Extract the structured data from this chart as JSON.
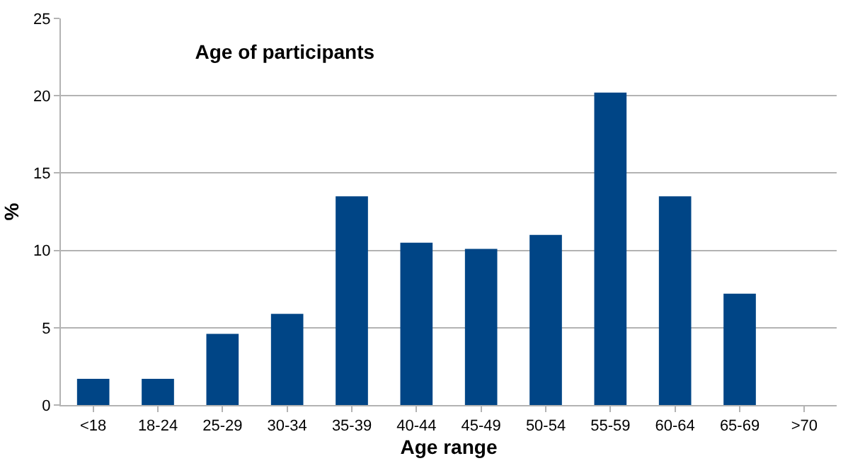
{
  "chart_data": {
    "type": "bar",
    "title": "Age of participants",
    "xlabel": "Age range",
    "ylabel": "%",
    "categories": [
      "<18",
      "18-24",
      "25-29",
      "30-34",
      "35-39",
      "40-44",
      "45-49",
      "50-54",
      "55-59",
      "60-64",
      "65-69",
      ">70"
    ],
    "values": [
      1.7,
      1.7,
      4.6,
      5.9,
      13.5,
      10.5,
      10.1,
      11.0,
      20.2,
      13.5,
      7.2,
      0
    ],
    "color": "#004586",
    "ylim": [
      0,
      25
    ],
    "yticks": [
      0,
      5,
      10,
      15,
      20,
      25
    ],
    "grid": "y",
    "legend": false
  }
}
